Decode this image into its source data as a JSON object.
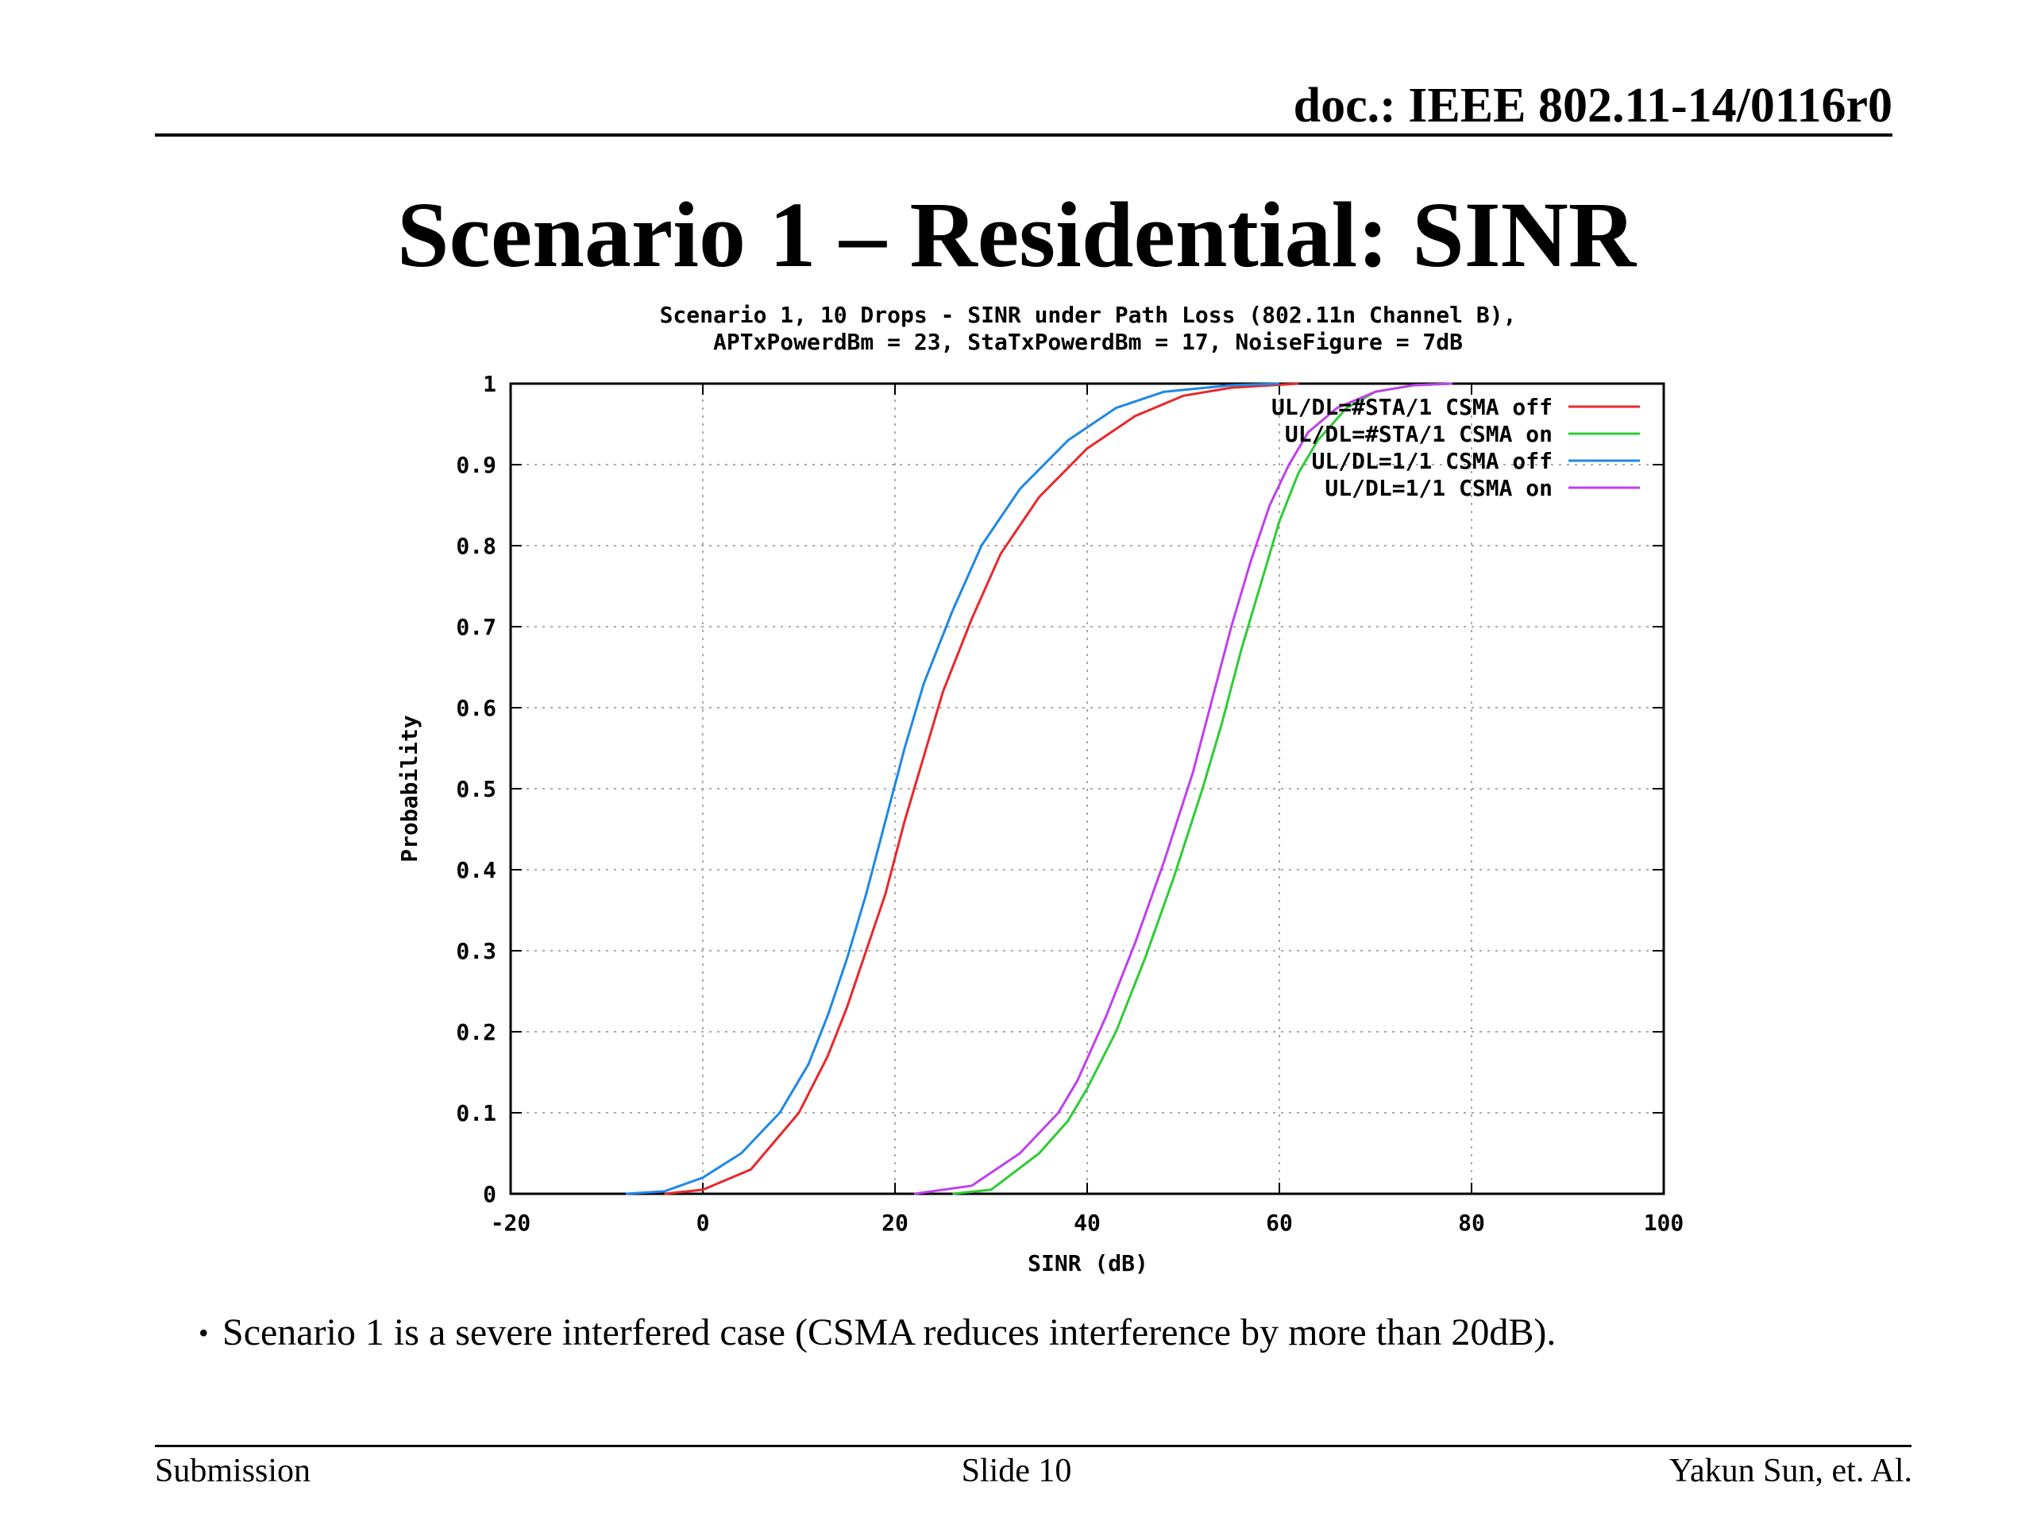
{
  "header": {
    "doc_id": "doc.: IEEE 802.11-14/0116r0"
  },
  "slide": {
    "title": "Scenario 1 – Residential: SINR",
    "bullet": "Scenario 1 is a severe interfered case (CSMA reduces interference by more than 20dB)."
  },
  "footer": {
    "left": "Submission",
    "center": "Slide 10",
    "right": "Yakun Sun, et. Al."
  },
  "chart_data": {
    "type": "line",
    "title_lines": [
      "Scenario 1, 10 Drops - SINR under Path Loss (802.11n Channel B),",
      "APTxPowerdBm = 23, StaTxPowerdBm = 17, NoiseFigure = 7dB"
    ],
    "xlabel": "SINR (dB)",
    "ylabel": "Probability",
    "xlim": [
      -20,
      100
    ],
    "ylim": [
      0,
      1
    ],
    "xticks": [
      -20,
      0,
      20,
      40,
      60,
      80,
      100
    ],
    "yticks": [
      0,
      0.1,
      0.2,
      0.3,
      0.4,
      0.5,
      0.6,
      0.7,
      0.8,
      0.9,
      1
    ],
    "ytick_labels": [
      "0",
      "0.1",
      "0.2",
      "0.3",
      "0.4",
      "0.5",
      "0.6",
      "0.7",
      "0.8",
      "0.9",
      "1"
    ],
    "grid": true,
    "legend_position": "top-right",
    "series": [
      {
        "name": "UL/DL=#STA/1 CSMA off",
        "color": "#e8282b",
        "x": [
          -4,
          0,
          5,
          10,
          13,
          15,
          17,
          19,
          21,
          23,
          25,
          28,
          31,
          35,
          40,
          45,
          50,
          55,
          62
        ],
        "y": [
          0,
          0.005,
          0.03,
          0.1,
          0.17,
          0.23,
          0.3,
          0.37,
          0.46,
          0.54,
          0.62,
          0.71,
          0.79,
          0.86,
          0.92,
          0.96,
          0.985,
          0.995,
          1
        ]
      },
      {
        "name": "UL/DL=#STA/1 CSMA on",
        "color": "#2ecc35",
        "x": [
          26,
          30,
          35,
          38,
          40,
          43,
          46,
          49,
          52,
          54,
          56,
          58,
          60,
          62,
          64,
          67,
          70,
          74,
          78
        ],
        "y": [
          0,
          0.005,
          0.05,
          0.09,
          0.13,
          0.2,
          0.29,
          0.39,
          0.5,
          0.58,
          0.67,
          0.75,
          0.83,
          0.89,
          0.93,
          0.97,
          0.99,
          0.998,
          1
        ]
      },
      {
        "name": "UL/DL=1/1 CSMA off",
        "color": "#1e88e5",
        "x": [
          -8,
          -4,
          0,
          4,
          8,
          11,
          13,
          15,
          17,
          19,
          21,
          23,
          26,
          29,
          33,
          38,
          43,
          48,
          55,
          60
        ],
        "y": [
          0,
          0.003,
          0.02,
          0.05,
          0.1,
          0.16,
          0.22,
          0.29,
          0.37,
          0.46,
          0.55,
          0.63,
          0.72,
          0.8,
          0.87,
          0.93,
          0.97,
          0.99,
          0.998,
          1
        ]
      },
      {
        "name": "UL/DL=1/1 CSMA on",
        "color": "#c040ee",
        "x": [
          22,
          28,
          33,
          37,
          39,
          42,
          45,
          48,
          51,
          53,
          55,
          57,
          59,
          61,
          63,
          66,
          70,
          74,
          78
        ],
        "y": [
          0,
          0.01,
          0.05,
          0.1,
          0.14,
          0.22,
          0.31,
          0.41,
          0.52,
          0.61,
          0.7,
          0.78,
          0.85,
          0.9,
          0.94,
          0.97,
          0.99,
          0.998,
          1
        ]
      }
    ]
  }
}
